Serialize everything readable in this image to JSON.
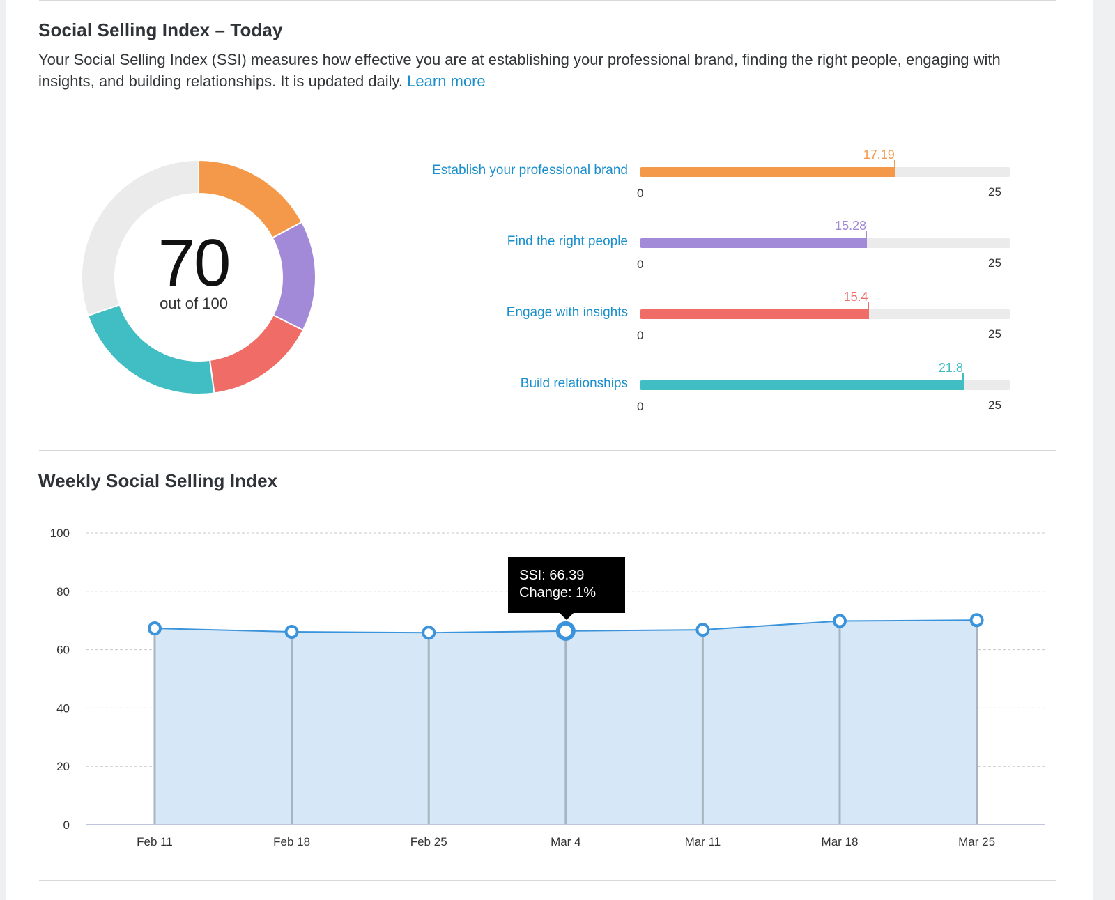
{
  "today": {
    "title": "Social Selling Index – Today",
    "description": "Your Social Selling Index (SSI) measures how effective you are at establishing your professional brand, finding the right people, engaging with insights, and building relationships. It is updated daily.",
    "learn_more": "Learn more"
  },
  "ssi": {
    "score": "70",
    "score_caption": "out of 100",
    "max_score": 100,
    "remainder_color": "#ebebeb"
  },
  "pillars": [
    {
      "label": "Establish your professional brand",
      "value": 17.19,
      "value_text": "17.19",
      "min": "0",
      "max": "25",
      "color": "#f4994a"
    },
    {
      "label": "Find the right people",
      "value": 15.28,
      "value_text": "15.28",
      "min": "0",
      "max": "25",
      "color": "#a38ad8"
    },
    {
      "label": "Engage with insights",
      "value": 15.4,
      "value_text": "15.4",
      "min": "0",
      "max": "25",
      "color": "#ef6c67"
    },
    {
      "label": "Build relationships",
      "value": 21.8,
      "value_text": "21.8",
      "min": "0",
      "max": "25",
      "color": "#40bec4"
    }
  ],
  "weekly": {
    "title": "Weekly Social Selling Index"
  },
  "tooltip": {
    "ssi": "SSI: 66.39",
    "change": "Change: 1%"
  },
  "chart_data": {
    "type": "area",
    "title": "Weekly Social Selling Index",
    "categories": [
      "Feb 11",
      "Feb 18",
      "Feb 25",
      "Mar 4",
      "Mar 11",
      "Mar 18",
      "Mar 25"
    ],
    "series": [
      {
        "values": [
          67.3,
          66.1,
          65.8,
          66.39,
          66.8,
          69.8,
          70.1
        ],
        "color": "#3b93db",
        "fill": "#d6e8f7"
      }
    ],
    "ylim": [
      0,
      100
    ],
    "yticks": [
      0,
      20,
      40,
      60,
      80,
      100
    ],
    "grid": true,
    "highlighted_index": 3
  }
}
